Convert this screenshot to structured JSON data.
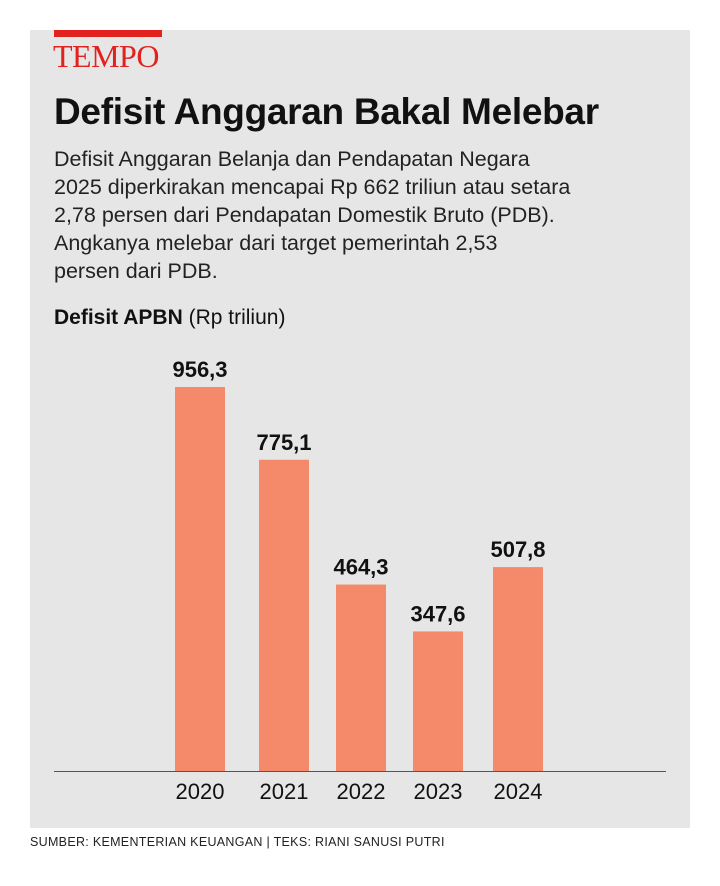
{
  "brand": "TEMPO",
  "title": "Defisit Anggaran Bakal Melebar",
  "description": [
    "Defisit Anggaran Belanja dan Pendapatan Negara",
    "2025 diperkirakan mencapai Rp 662 triliun atau setara",
    "2,78 persen dari Pendapatan Domestik Bruto (PDB).",
    "Angkanya melebar dari target pemerintah  2,53",
    "persen dari PDB."
  ],
  "chart_label_bold": "Defisit APBN",
  "chart_label_unit": "(Rp triliun)",
  "footer": "SUMBER: KEMENTERIAN KEUANGAN | TEKS: RIANI SANUSI PUTRI",
  "colors": {
    "bar": "#f58a6a",
    "brand": "#e2221e",
    "panel": "#e6e6e6"
  },
  "chart_data": {
    "type": "bar",
    "title": "Defisit APBN",
    "ylabel": "Rp triliun",
    "categories": [
      "2020",
      "2021",
      "2022",
      "2023",
      "2024"
    ],
    "values": [
      956.3,
      775.1,
      464.3,
      347.6,
      507.8
    ],
    "value_labels": [
      "956,3",
      "775,1",
      "464,3",
      "347,6",
      "507,8"
    ],
    "ylim": [
      0,
      956.3
    ],
    "grid": false
  }
}
